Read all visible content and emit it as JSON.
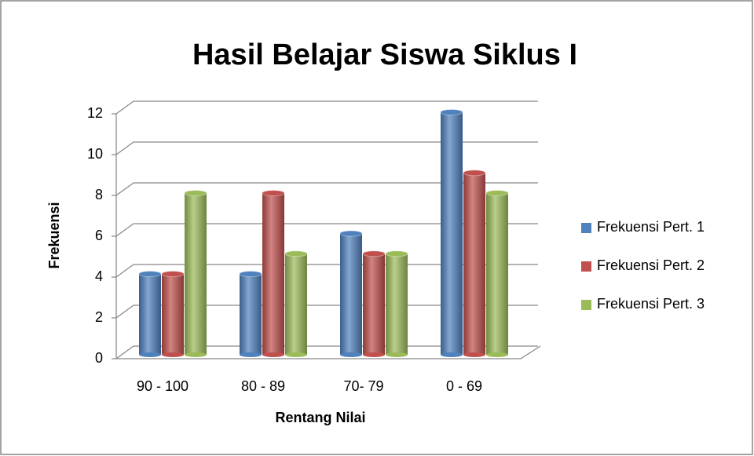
{
  "chart_data": {
    "type": "bar",
    "title": "Hasil Belajar Siswa Siklus I",
    "categories": [
      "90 - 100",
      "80 - 89",
      "70- 79",
      "0 - 69"
    ],
    "series": [
      {
        "name": "Frekuensi Pert. 1",
        "color": "#4f81bd",
        "values": [
          4,
          4,
          6,
          12
        ]
      },
      {
        "name": "Frekuensi Pert. 2",
        "color": "#c0504d",
        "values": [
          4,
          8,
          5,
          9
        ]
      },
      {
        "name": "Frekuensi Pert. 3",
        "color": "#9bbb59",
        "values": [
          8,
          5,
          5,
          8
        ]
      }
    ],
    "xlabel": "Rentang Nilai",
    "ylabel": "Frekuensi",
    "ylim": [
      0,
      12
    ],
    "yticks": [
      0,
      2,
      4,
      6,
      8,
      10,
      12
    ],
    "grid": true,
    "legend": "right"
  }
}
